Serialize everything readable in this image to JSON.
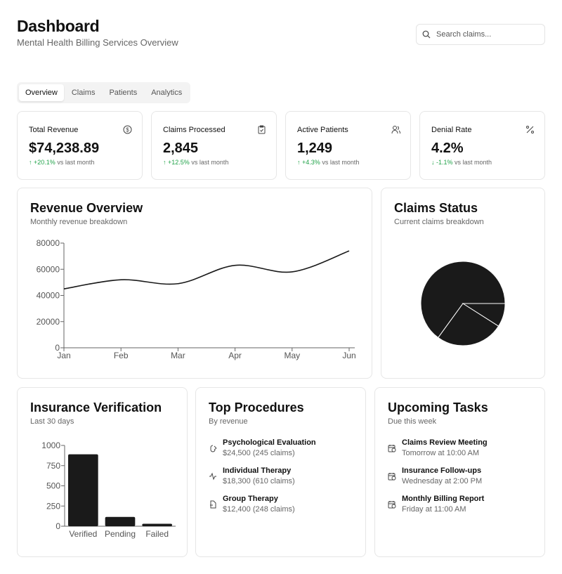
{
  "header": {
    "title": "Dashboard",
    "subtitle": "Mental Health Billing Services Overview",
    "search_placeholder": "Search claims..."
  },
  "tabs": [
    {
      "label": "Overview",
      "active": true
    },
    {
      "label": "Claims"
    },
    {
      "label": "Patients"
    },
    {
      "label": "Analytics"
    }
  ],
  "stats": [
    {
      "label": "Total Revenue",
      "value": "$74,238.89",
      "change": "+20.1%",
      "suffix": "vs last month",
      "trend": "up",
      "icon": "dollar-icon"
    },
    {
      "label": "Claims Processed",
      "value": "2,845",
      "change": "+12.5%",
      "suffix": "vs last month",
      "trend": "up",
      "icon": "clipboard-check-icon"
    },
    {
      "label": "Active Patients",
      "value": "1,249",
      "change": "+4.3%",
      "suffix": "vs last month",
      "trend": "up",
      "icon": "users-icon"
    },
    {
      "label": "Denial Rate",
      "value": "4.2%",
      "change": "-1.1%",
      "suffix": "vs last month",
      "trend": "down",
      "icon": "percent-icon"
    }
  ],
  "colors": {
    "up": "#22a34a",
    "down": "#22a34a",
    "mark": "#1a1a1a"
  },
  "revenue": {
    "title": "Revenue Overview",
    "subtitle": "Monthly revenue breakdown"
  },
  "claims_status": {
    "title": "Claims Status",
    "subtitle": "Current claims breakdown"
  },
  "insurance": {
    "title": "Insurance Verification",
    "subtitle": "Last 30 days"
  },
  "procedures": {
    "title": "Top Procedures",
    "subtitle": "By revenue",
    "items": [
      {
        "name": "Psychological Evaluation",
        "detail": "$24,500 (245 claims)",
        "icon": "brain-icon"
      },
      {
        "name": "Individual Therapy",
        "detail": "$18,300 (610 claims)",
        "icon": "activity-icon"
      },
      {
        "name": "Group Therapy",
        "detail": "$12,400 (248 claims)",
        "icon": "file-icon"
      }
    ]
  },
  "tasks": {
    "title": "Upcoming Tasks",
    "subtitle": "Due this week",
    "items": [
      {
        "name": "Claims Review Meeting",
        "detail": "Tomorrow at 10:00 AM",
        "icon": "calendar-clock-icon"
      },
      {
        "name": "Insurance Follow-ups",
        "detail": "Wednesday at 2:00 PM",
        "icon": "calendar-clock-icon"
      },
      {
        "name": "Monthly Billing Report",
        "detail": "Friday at 11:00 AM",
        "icon": "calendar-clock-icon"
      }
    ]
  },
  "chart_data": [
    {
      "type": "line",
      "categories": [
        "Jan",
        "Feb",
        "Mar",
        "Apr",
        "May",
        "Jun"
      ],
      "values": [
        45000,
        52000,
        49000,
        63000,
        58000,
        74000
      ],
      "ylim": [
        0,
        80000
      ],
      "yticks": [
        0,
        20000,
        40000,
        60000,
        80000
      ],
      "grid": false
    },
    {
      "type": "pie",
      "values": [
        65,
        26,
        9
      ]
    },
    {
      "type": "bar",
      "categories": [
        "Verified",
        "Pending",
        "Failed"
      ],
      "values": [
        890,
        115,
        30
      ],
      "ylim": [
        0,
        1000
      ],
      "yticks": [
        0,
        250,
        500,
        750,
        1000
      ],
      "grid": false
    }
  ]
}
